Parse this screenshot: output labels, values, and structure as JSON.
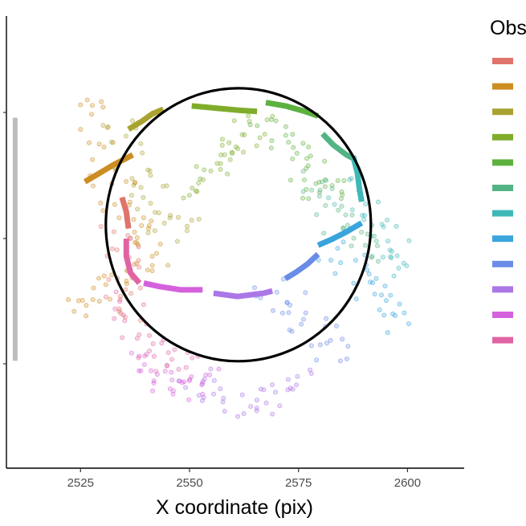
{
  "chart_data": {
    "type": "scatter",
    "xlabel": "X coordinate (pix)",
    "x_ticks": [
      2525,
      2550,
      2575,
      2600
    ],
    "xlim": [
      2508,
      2613
    ],
    "ylim": [
      0,
      420
    ],
    "legend": {
      "title": "Obs",
      "position": "right"
    },
    "grid": false,
    "fitted_circle": {
      "cx": 2561.2,
      "cy": 240,
      "r": 30.4,
      "color": "#000000"
    },
    "scale_bar": {
      "x": 2510,
      "y1": 100,
      "y2": 300,
      "color": "#bdbdbd"
    },
    "series": [
      {
        "color": "#e0736b",
        "points": [
          [
            2534.2,
            205
          ],
          [
            2534.5,
            190
          ],
          [
            2534.6,
            175
          ],
          [
            2534.8,
            160
          ],
          [
            2535.1,
            145
          ]
        ]
      },
      {
        "color": "#cc8d22",
        "points": [
          [
            2526.5,
            325
          ],
          [
            2528.5,
            295
          ],
          [
            2531.0,
            265
          ],
          [
            2534.0,
            245
          ],
          [
            2537.3,
            225
          ],
          [
            2540.0,
            210
          ],
          [
            2541.5,
            195
          ],
          [
            2538.0,
            180
          ],
          [
            2533.5,
            170
          ],
          [
            2528.0,
            160
          ],
          [
            2524.0,
            150
          ]
        ]
      },
      {
        "color": "#a8a330",
        "points": [
          [
            2534.0,
            300
          ],
          [
            2536.8,
            280
          ],
          [
            2539.5,
            255
          ],
          [
            2542.0,
            240
          ],
          [
            2545.0,
            225
          ],
          [
            2548.0,
            215
          ]
        ]
      },
      {
        "color": "#7fad2b",
        "points": [
          [
            2550.0,
            245
          ],
          [
            2553.0,
            260
          ],
          [
            2556.0,
            275
          ],
          [
            2559.0,
            290
          ],
          [
            2562.0,
            300
          ],
          [
            2565.0,
            310
          ]
        ]
      },
      {
        "color": "#5cb13f",
        "points": [
          [
            2568.0,
            305
          ],
          [
            2571.0,
            295
          ],
          [
            2574.0,
            280
          ],
          [
            2577.0,
            265
          ],
          [
            2580.0,
            255
          ],
          [
            2583.0,
            245
          ]
        ]
      },
      {
        "color": "#52b483",
        "points": [
          [
            2580.0,
            260
          ],
          [
            2582.5,
            240
          ],
          [
            2585.0,
            220
          ],
          [
            2587.5,
            205
          ],
          [
            2590.0,
            195
          ]
        ]
      },
      {
        "color": "#3fb8b7",
        "points": [
          [
            2586.0,
            250
          ],
          [
            2590.0,
            230
          ],
          [
            2593.5,
            215
          ],
          [
            2597.0,
            200
          ],
          [
            2600.0,
            185
          ]
        ]
      },
      {
        "color": "#3aa4dd",
        "points": [
          [
            2583.0,
            195
          ],
          [
            2587.0,
            180
          ],
          [
            2590.0,
            165
          ],
          [
            2593.0,
            150
          ],
          [
            2596.0,
            135
          ]
        ]
      },
      {
        "color": "#6a8be6",
        "points": [
          [
            2569.0,
            160
          ],
          [
            2573.0,
            145
          ],
          [
            2577.0,
            130
          ],
          [
            2580.0,
            120
          ],
          [
            2582.0,
            110
          ]
        ]
      },
      {
        "color": "#ab77e6",
        "points": [
          [
            2551.0,
            75
          ],
          [
            2556.0,
            65
          ],
          [
            2561.0,
            60
          ],
          [
            2566.0,
            62
          ],
          [
            2571.0,
            70
          ],
          [
            2576.0,
            78
          ]
        ]
      },
      {
        "color": "#d560dc",
        "points": [
          [
            2538.0,
            90
          ],
          [
            2542.0,
            80
          ],
          [
            2546.0,
            75
          ],
          [
            2550.0,
            72
          ],
          [
            2554.0,
            80
          ]
        ]
      },
      {
        "color": "#e064a4",
        "points": [
          [
            2536.0,
            145
          ],
          [
            2539.0,
            125
          ],
          [
            2542.0,
            110
          ],
          [
            2545.0,
            100
          ],
          [
            2548.0,
            95
          ]
        ]
      }
    ],
    "tracks": [
      {
        "color": "#e0736b",
        "points": [
          [
            2534.5,
            243
          ],
          [
            2535.5,
            230
          ],
          [
            2536.0,
            215
          ]
        ]
      },
      {
        "color": "#cc8d22",
        "points": [
          [
            2526.0,
            257
          ],
          [
            2529.5,
            265
          ],
          [
            2532.5,
            272
          ],
          [
            2537.0,
            281
          ]
        ]
      },
      {
        "color": "#a8a330",
        "points": [
          [
            2536.0,
            304
          ],
          [
            2539.0,
            311
          ],
          [
            2541.5,
            318
          ],
          [
            2544.0,
            322
          ]
        ]
      },
      {
        "color": "#7fad2b",
        "points": [
          [
            2550.5,
            325
          ],
          [
            2556.0,
            323
          ],
          [
            2561.5,
            321
          ],
          [
            2565.5,
            320
          ]
        ]
      },
      {
        "color": "#5cb13f",
        "points": [
          [
            2567.5,
            328
          ],
          [
            2572.0,
            325
          ],
          [
            2576.5,
            320
          ],
          [
            2579.5,
            316
          ]
        ]
      },
      {
        "color": "#52b483",
        "points": [
          [
            2580.5,
            300
          ],
          [
            2583.0,
            290
          ],
          [
            2586.0,
            281
          ],
          [
            2588.0,
            277
          ]
        ]
      },
      {
        "color": "#3fb8b7",
        "points": [
          [
            2587.5,
            280
          ],
          [
            2588.5,
            265
          ],
          [
            2589.0,
            250
          ],
          [
            2589.5,
            239
          ]
        ]
      },
      {
        "color": "#3aa4dd",
        "points": [
          [
            2589.5,
            220
          ],
          [
            2586.0,
            212
          ],
          [
            2582.5,
            205
          ],
          [
            2579.5,
            200
          ]
        ]
      },
      {
        "color": "#6a8be6",
        "points": [
          [
            2579.5,
            192
          ],
          [
            2577.0,
            183
          ],
          [
            2574.5,
            176
          ],
          [
            2572.0,
            170
          ]
        ]
      },
      {
        "color": "#ab77e6",
        "points": [
          [
            2569.0,
            159
          ],
          [
            2567.0,
            157
          ],
          [
            2561.0,
            154
          ],
          [
            2555.5,
            157
          ]
        ]
      },
      {
        "color": "#d560dc",
        "points": [
          [
            2553.0,
            160
          ],
          [
            2548.0,
            160
          ],
          [
            2543.0,
            163
          ],
          [
            2539.5,
            166
          ]
        ]
      },
      {
        "color": "#e064a4",
        "points": [
          [
            2538.5,
            166
          ],
          [
            2536.5,
            175
          ],
          [
            2535.5,
            190
          ],
          [
            2535.5,
            206
          ]
        ]
      }
    ]
  }
}
